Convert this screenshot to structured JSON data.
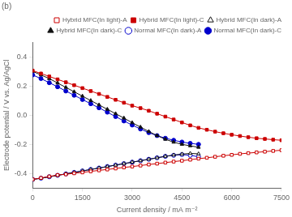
{
  "chart_data": {
    "type": "line",
    "title": "(b)",
    "xlabel": "Current density / mA m⁻²",
    "ylabel": "Electrode potential / V vs. Ag/AgCl",
    "xlim": [
      0,
      7500
    ],
    "ylim": [
      -0.5,
      0.5
    ],
    "xticks": [
      0,
      1500,
      3000,
      4500,
      6000,
      7500
    ],
    "yticks": [
      -0.4,
      -0.2,
      {
        "value": 0,
        "label": "0.0"
      },
      0.2,
      0.4
    ],
    "grid": false,
    "legend": "upper right",
    "series": [
      {
        "name": "Hybrid MFC(In light)-A",
        "color": "#cc0000",
        "marker": "square-open",
        "x": [
          0,
          250,
          500,
          750,
          1000,
          1250,
          1500,
          1750,
          2000,
          2250,
          2500,
          2750,
          3000,
          3250,
          3500,
          3750,
          4000,
          4250,
          4500,
          4750,
          5000,
          5250,
          5500,
          5750,
          6000,
          6250,
          6500,
          6750,
          7000,
          7250,
          7500
        ],
        "values": [
          -0.44,
          -0.43,
          -0.42,
          -0.41,
          -0.405,
          -0.398,
          -0.392,
          -0.385,
          -0.378,
          -0.372,
          -0.365,
          -0.358,
          -0.352,
          -0.345,
          -0.338,
          -0.332,
          -0.325,
          -0.318,
          -0.312,
          -0.305,
          -0.298,
          -0.292,
          -0.285,
          -0.278,
          -0.272,
          -0.265,
          -0.26,
          -0.255,
          -0.25,
          -0.245,
          -0.24
        ]
      },
      {
        "name": "Hybrid MFC(In light)-C",
        "color": "#cc0000",
        "marker": "square",
        "x": [
          0,
          250,
          500,
          750,
          1000,
          1250,
          1500,
          1750,
          2000,
          2250,
          2500,
          2750,
          3000,
          3250,
          3500,
          3750,
          4000,
          4250,
          4500,
          4750,
          5000,
          5250,
          5500,
          5750,
          6000,
          6250,
          6500,
          6750,
          7000,
          7250,
          7500
        ],
        "values": [
          0.305,
          0.285,
          0.265,
          0.245,
          0.225,
          0.205,
          0.185,
          0.165,
          0.145,
          0.125,
          0.105,
          0.085,
          0.065,
          0.048,
          0.03,
          0.01,
          -0.01,
          -0.03,
          -0.05,
          -0.07,
          -0.087,
          -0.1,
          -0.113,
          -0.124,
          -0.134,
          -0.143,
          -0.151,
          -0.158,
          -0.163,
          -0.168,
          -0.172
        ]
      },
      {
        "name": "Hybrid MFC(In dark)-A",
        "color": "#111111",
        "marker": "triangle-open",
        "x": [
          0,
          250,
          500,
          750,
          1000,
          1250,
          1500,
          1750,
          2000,
          2250,
          2500,
          2750,
          3000,
          3250,
          3500,
          3750,
          4000,
          4250,
          4500,
          4750,
          5000
        ],
        "values": [
          -0.44,
          -0.432,
          -0.422,
          -0.412,
          -0.402,
          -0.392,
          -0.382,
          -0.372,
          -0.362,
          -0.352,
          -0.342,
          -0.332,
          -0.322,
          -0.312,
          -0.302,
          -0.292,
          -0.282,
          -0.273,
          -0.267,
          -0.262,
          -0.265
        ]
      },
      {
        "name": "Hybrid MFC(In dark)-C",
        "color": "#111111",
        "marker": "triangle",
        "x": [
          0,
          250,
          500,
          750,
          1000,
          1250,
          1500,
          1750,
          2000,
          2250,
          2500,
          2750,
          3000,
          3250,
          3500,
          3750,
          4000,
          4250,
          4500,
          4750,
          5000
        ],
        "values": [
          0.3,
          0.275,
          0.25,
          0.22,
          0.19,
          0.16,
          0.13,
          0.1,
          0.07,
          0.04,
          0.01,
          -0.02,
          -0.052,
          -0.082,
          -0.112,
          -0.14,
          -0.165,
          -0.185,
          -0.2,
          -0.21,
          -0.22
        ]
      },
      {
        "name": "Normal MFC(In dark)-A",
        "color": "#0000cc",
        "marker": "circle-open",
        "x": [
          0,
          250,
          500,
          750,
          1000,
          1250,
          1500,
          1750,
          2000,
          2250,
          2500,
          2750,
          3000,
          3250,
          3500,
          3750,
          4000,
          4250,
          4500,
          4750,
          5000
        ],
        "values": [
          -0.44,
          -0.432,
          -0.422,
          -0.412,
          -0.402,
          -0.392,
          -0.382,
          -0.372,
          -0.362,
          -0.352,
          -0.342,
          -0.332,
          -0.322,
          -0.312,
          -0.302,
          -0.292,
          -0.282,
          -0.275,
          -0.27,
          -0.275,
          -0.285
        ]
      },
      {
        "name": "Normal MFC(In dark)-C",
        "color": "#0000cc",
        "marker": "circle",
        "x": [
          0,
          250,
          500,
          750,
          1000,
          1250,
          1500,
          1750,
          2000,
          2250,
          2500,
          2750,
          3000,
          3250,
          3500,
          3750,
          4000,
          4250,
          4500,
          4750,
          5000
        ],
        "values": [
          0.275,
          0.25,
          0.222,
          0.194,
          0.165,
          0.136,
          0.107,
          0.078,
          0.05,
          0.02,
          -0.01,
          -0.04,
          -0.068,
          -0.095,
          -0.12,
          -0.14,
          -0.158,
          -0.172,
          -0.184,
          -0.193,
          -0.2
        ]
      }
    ]
  }
}
